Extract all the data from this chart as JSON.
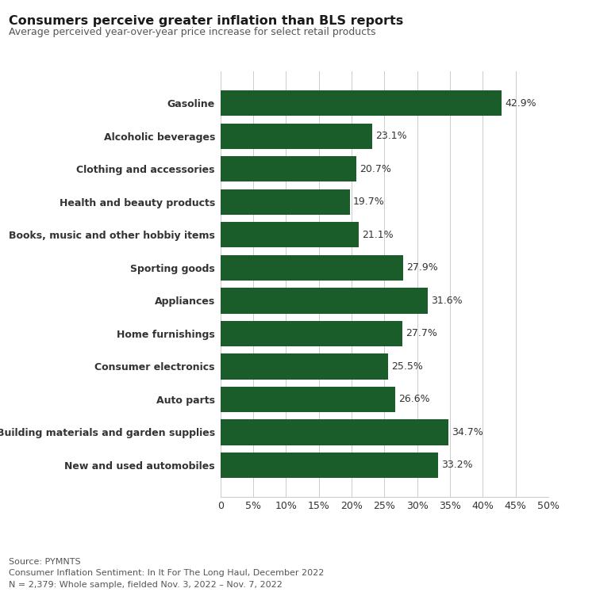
{
  "title": "Consumers perceive greater inflation than BLS reports",
  "subtitle": "Average perceived year-over-year price increase for select retail products",
  "categories": [
    "Gasoline",
    "Alcoholic beverages",
    "Clothing and accessories",
    "Health and beauty products",
    "Books, music and other hobbiy items",
    "Sporting goods",
    "Appliances",
    "Home furnishings",
    "Consumer electronics",
    "Auto parts",
    "Building materials and garden supplies",
    "New and used automobiles"
  ],
  "values": [
    42.9,
    23.1,
    20.7,
    19.7,
    21.1,
    27.9,
    31.6,
    27.7,
    25.5,
    26.6,
    34.7,
    33.2
  ],
  "bar_color": "#1a5c2a",
  "label_color": "#333333",
  "title_color": "#1a1a1a",
  "subtitle_color": "#555555",
  "footnote_color": "#555555",
  "background_color": "#ffffff",
  "xlim": [
    0,
    50
  ],
  "xticks": [
    0,
    5,
    10,
    15,
    20,
    25,
    30,
    35,
    40,
    45,
    50
  ],
  "footnote_lines": [
    "Source: PYMNTS",
    "Consumer Inflation Sentiment: In It For The Long Haul, December 2022",
    "N = 2,379: Whole sample, fielded Nov. 3, 2022 – Nov. 7, 2022"
  ]
}
